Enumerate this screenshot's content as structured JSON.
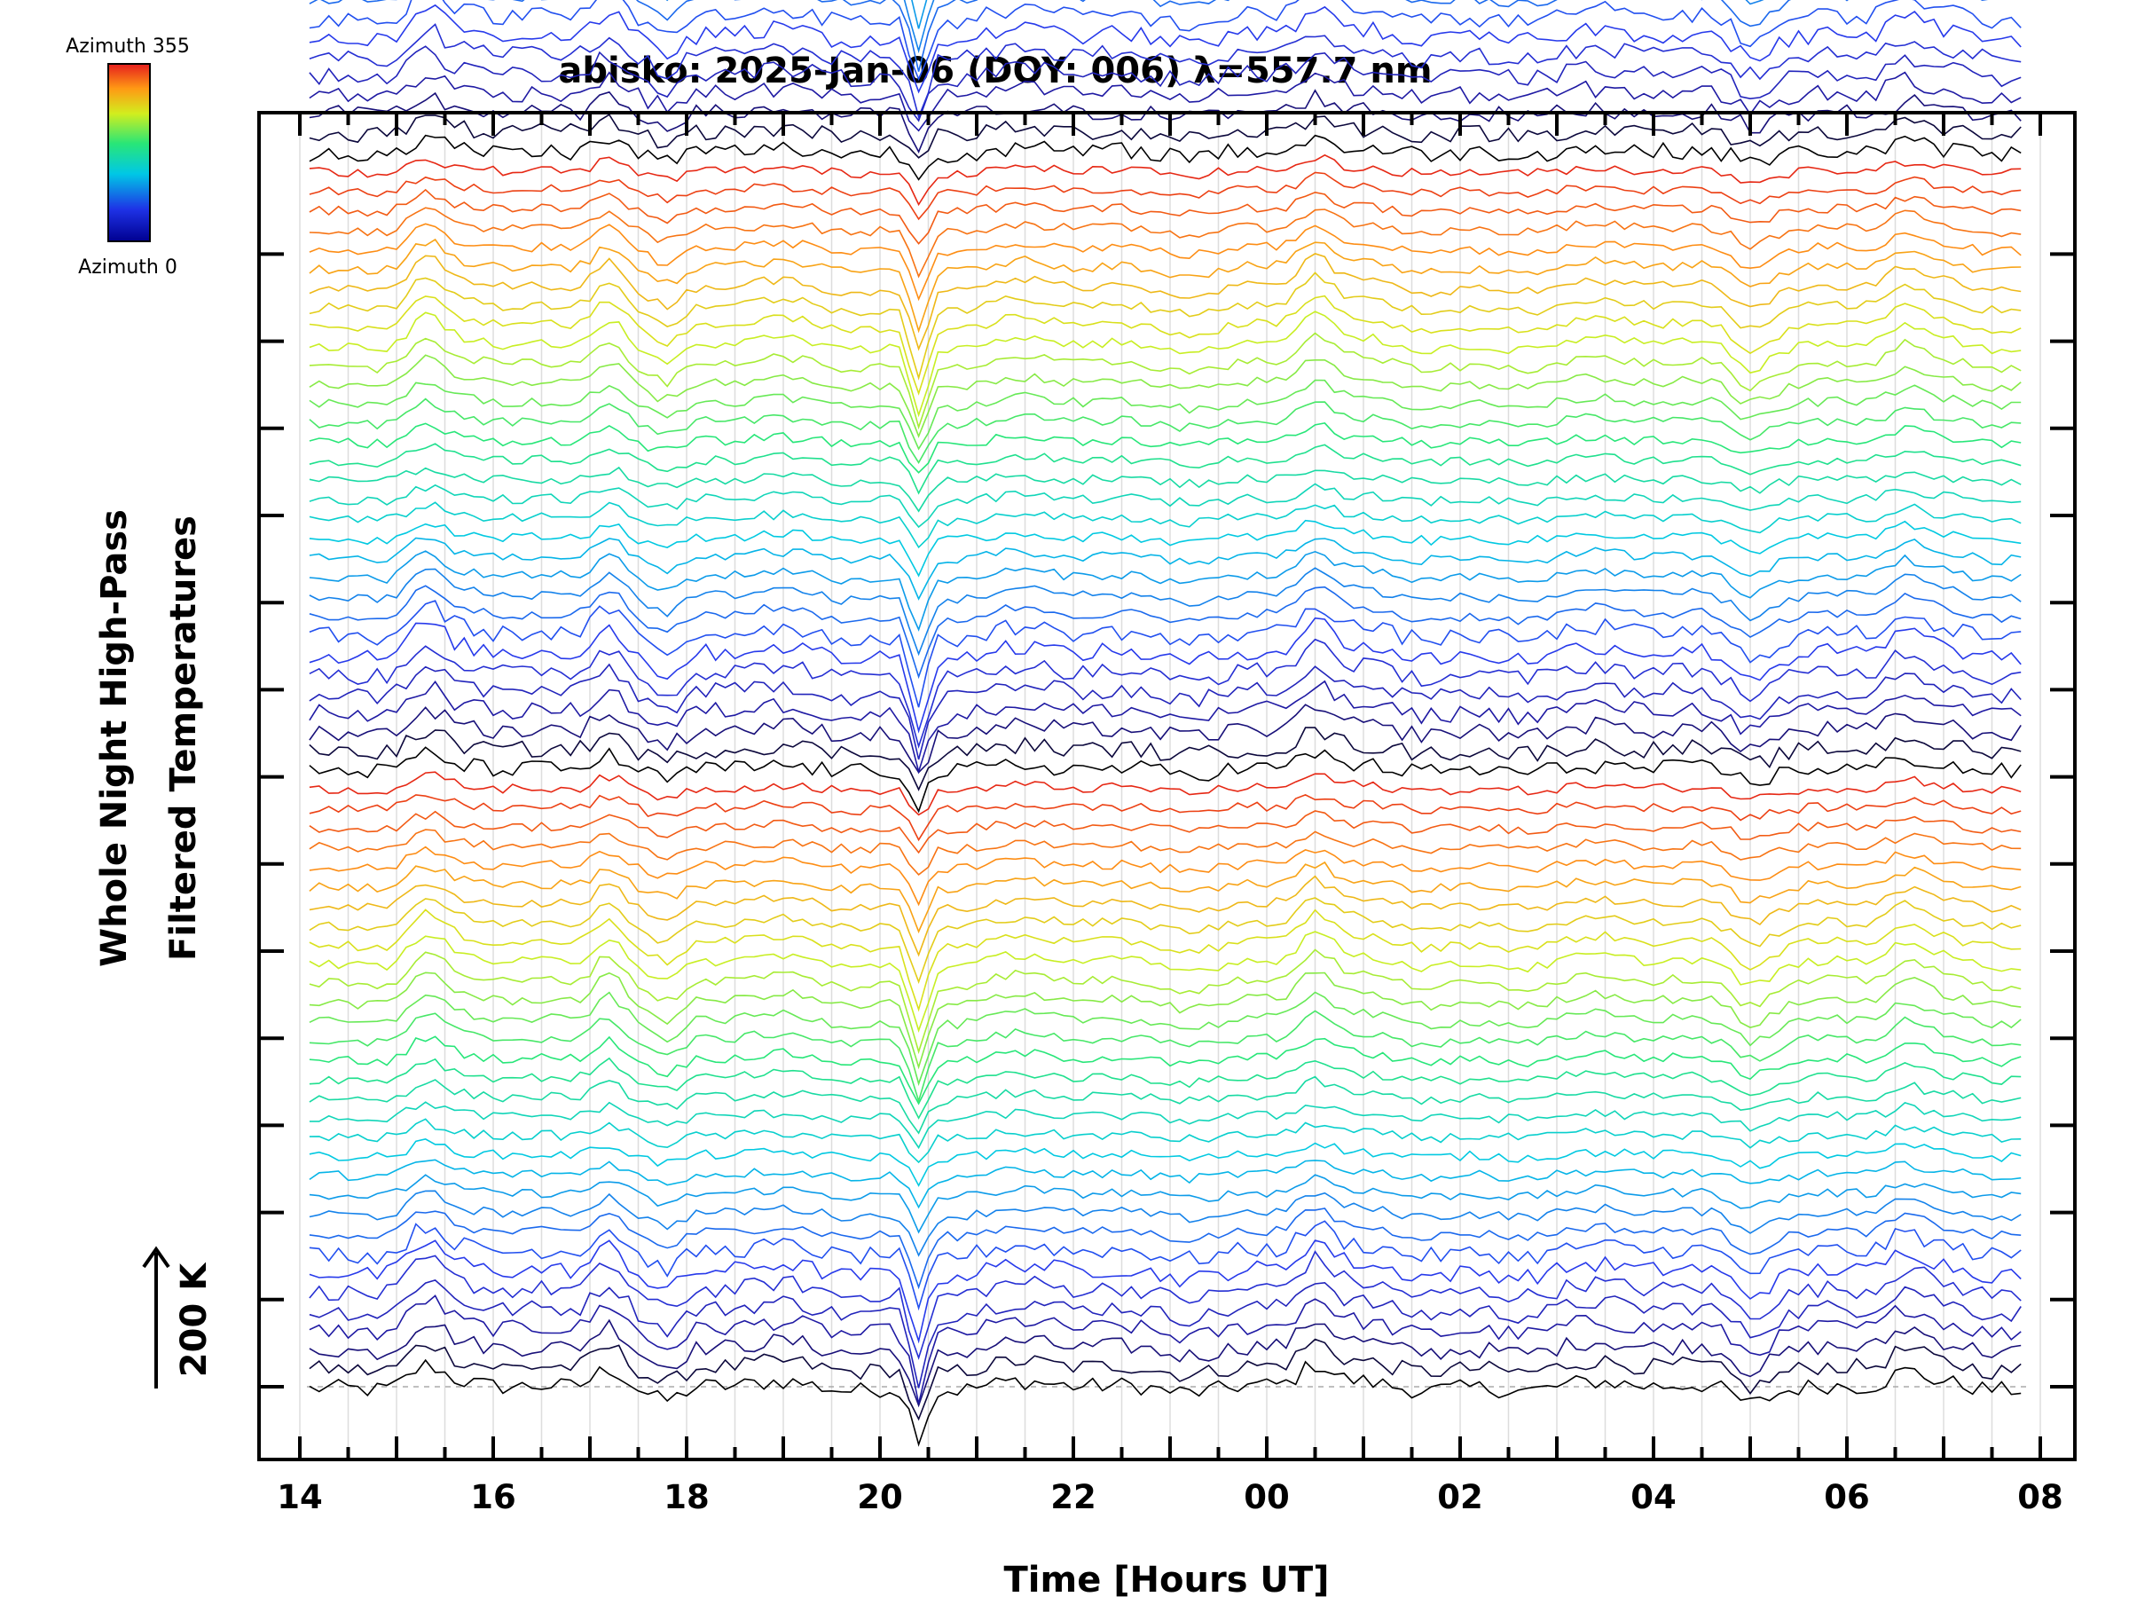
{
  "chart_data": {
    "type": "line",
    "title": "abisko: 2025-Jan-06 (DOY: 006) λ=557.7 nm",
    "xlabel": "Time [Hours UT]",
    "ylabel_line1": "Whole Night High-Pass",
    "ylabel_line2": "Filtered Temperatures",
    "scale_bar_label": "200 K",
    "x_tick_labels": [
      "14",
      "16",
      "18",
      "20",
      "22",
      "00",
      "02",
      "04",
      "06",
      "08"
    ],
    "xlim_hours": [
      13.9,
      32.2
    ],
    "data_xlim_hours": [
      14.1,
      31.8
    ],
    "colorbar": {
      "top_label": "Azimuth 355",
      "bottom_label": "Azimuth 0",
      "range": [
        0,
        355
      ]
    },
    "series_count": 190,
    "series_groups": 6,
    "series_per_group": 32,
    "stack_offset_K": 25,
    "grid": true,
    "common_features": [
      {
        "time_hours": 15.3,
        "amplitude_K": 60
      },
      {
        "time_hours": 17.2,
        "amplitude_K": 80
      },
      {
        "time_hours": 17.8,
        "amplitude_K": -50
      },
      {
        "time_hours": 20.4,
        "amplitude_K": -160
      },
      {
        "time_hours": 24.5,
        "amplitude_K": 70
      },
      {
        "time_hours": 29.0,
        "amplitude_K": -40
      },
      {
        "time_hours": 30.6,
        "amplitude_K": 40
      }
    ]
  }
}
